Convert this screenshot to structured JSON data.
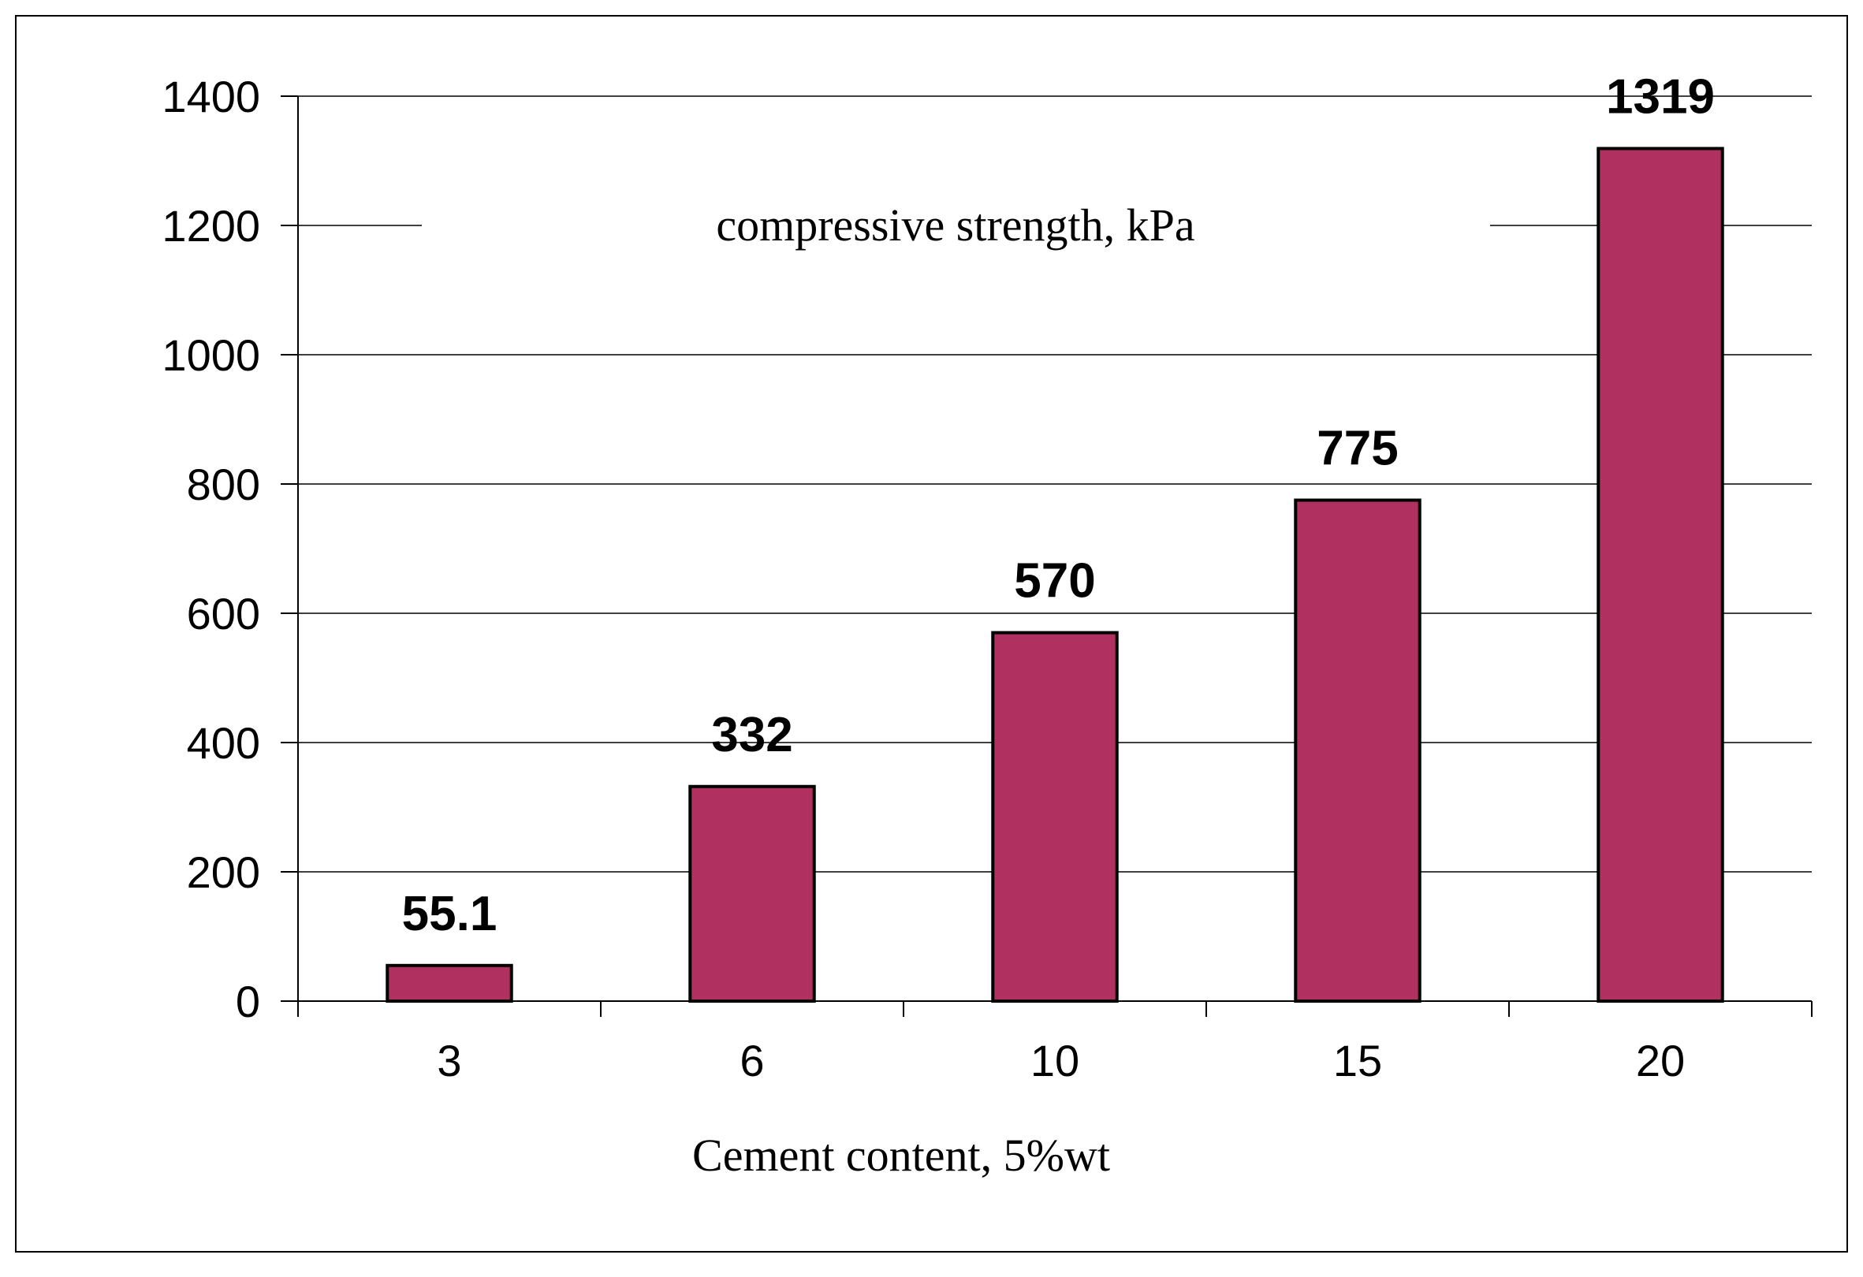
{
  "chart_data": {
    "type": "bar",
    "title": "compressive strength, kPa",
    "xlabel": "Cement content, 5%wt",
    "ylabel": "",
    "categories": [
      "3",
      "6",
      "10",
      "15",
      "20"
    ],
    "values": [
      55.1,
      332,
      570,
      775,
      1319
    ],
    "data_labels": [
      "55.1",
      "332",
      "570",
      "775",
      "1319"
    ],
    "ylim": [
      0,
      1400
    ],
    "yticks": [
      0,
      200,
      400,
      600,
      800,
      1000,
      1200,
      1400
    ],
    "grid": true,
    "legend": "none",
    "colors": {
      "bar": "#b03060",
      "bar_edge": "#000000",
      "grid": "#000000",
      "frame": "#000000"
    }
  }
}
